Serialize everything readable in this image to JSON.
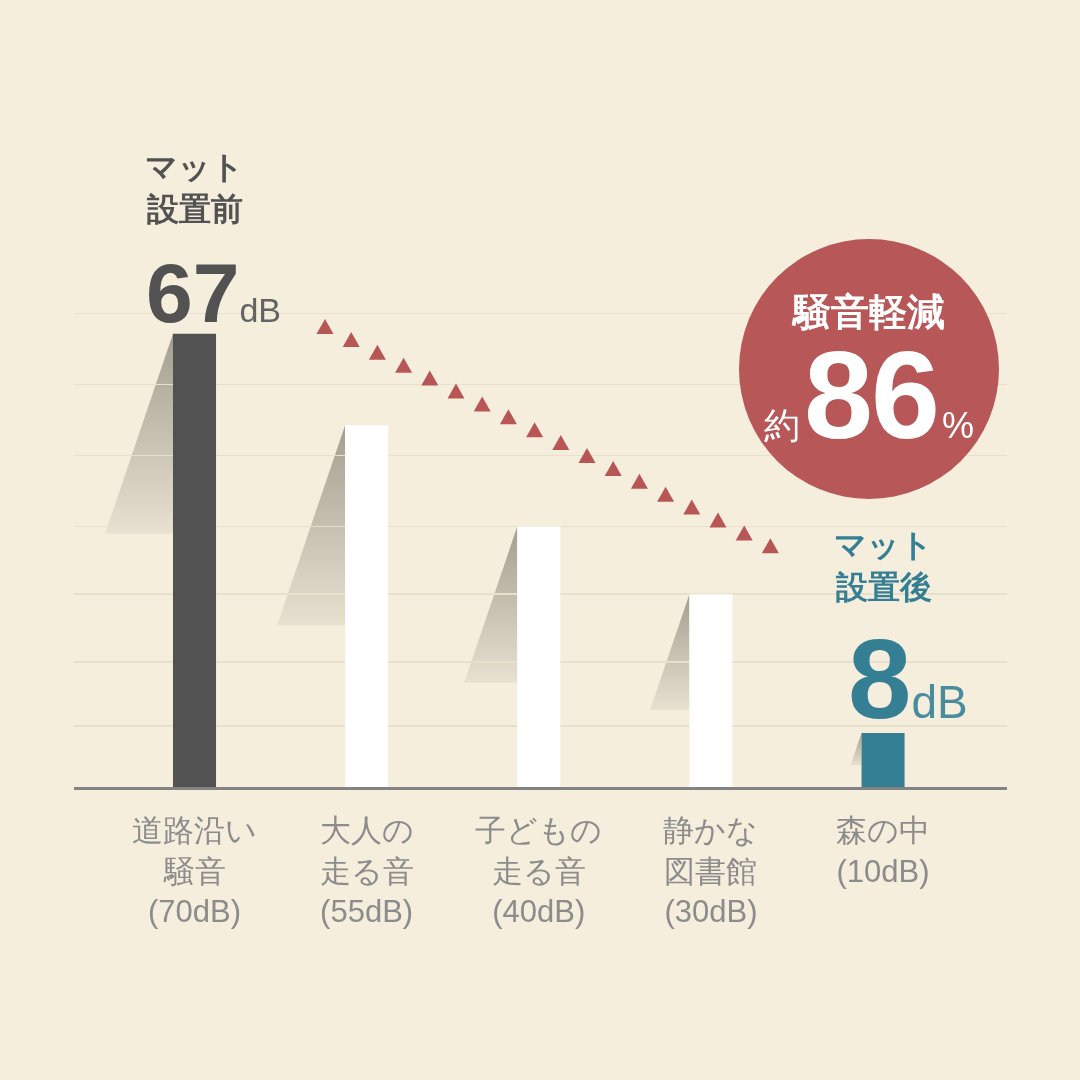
{
  "chart_data": {
    "type": "bar",
    "categories": [
      "道路沿い騒音(70dB)",
      "大人の走る音(55dB)",
      "子どもの走る音(40dB)",
      "静かな図書館(30dB)",
      "森の中(10dB)"
    ],
    "values": [
      67,
      53.5,
      38.5,
      28.5,
      8
    ],
    "colors": [
      "#525252",
      "#ffffff",
      "#ffffff",
      "#ffffff",
      "#347f93"
    ],
    "value_labels": [
      "67dB",
      null,
      null,
      null,
      "8dB"
    ],
    "annotations": [
      "マット設置前",
      "マット設置後",
      "騒音軽減約86%"
    ],
    "yticks": [
      {
        "value": 9,
        "label": null
      },
      {
        "value": 18.5,
        "label": null
      },
      {
        "value": 28.5,
        "label": null
      },
      {
        "value": 38.5,
        "label": null
      },
      {
        "value": 49,
        "label": null
      },
      {
        "value": 59.5,
        "label": null
      },
      {
        "value": 70,
        "label": null
      }
    ],
    "grid": "y",
    "tick_labels": "x"
  }
}
